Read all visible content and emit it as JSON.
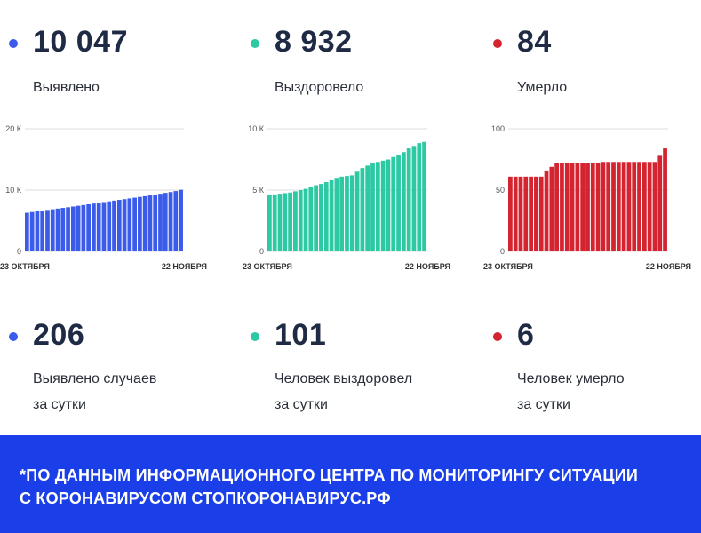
{
  "colors": {
    "blue": "#3b5bea",
    "teal": "#2cc9a3",
    "red": "#d42430",
    "footer": "#1a3ee8"
  },
  "stats": [
    {
      "value": "10 047",
      "label": "Выявлено"
    },
    {
      "value": "8 932",
      "label": "Выздоровело"
    },
    {
      "value": "84",
      "label": "Умерло"
    }
  ],
  "daily": [
    {
      "value": "206",
      "label_line1": "Выявлено случаев",
      "label_line2": "за сутки"
    },
    {
      "value": "101",
      "label_line1": "Человек выздоровел",
      "label_line2": "за сутки"
    },
    {
      "value": "6",
      "label_line1": "Человек умерло",
      "label_line2": "за сутки"
    }
  ],
  "chart_data": [
    {
      "type": "bar",
      "x_start_label": "23 ОКТЯБРЯ",
      "x_end_label": "22 НОЯБРЯ",
      "y_tick_labels": [
        "0",
        "10 К",
        "20 К"
      ],
      "y_ticks": [
        0,
        10000,
        20000
      ],
      "ylim": [
        0,
        20000
      ],
      "color": "#3b5bea",
      "values": [
        6300,
        6420,
        6540,
        6650,
        6760,
        6870,
        6980,
        7090,
        7200,
        7320,
        7440,
        7560,
        7680,
        7800,
        7920,
        8040,
        8160,
        8280,
        8400,
        8520,
        8640,
        8760,
        8880,
        9000,
        9120,
        9260,
        9400,
        9540,
        9680,
        9841,
        10047
      ]
    },
    {
      "type": "bar",
      "x_start_label": "23 ОКТЯБРЯ",
      "x_end_label": "22 НОЯБРЯ",
      "y_tick_labels": [
        "0",
        "5 К",
        "10 К"
      ],
      "y_ticks": [
        0,
        5000,
        10000
      ],
      "ylim": [
        0,
        10000
      ],
      "color": "#2cc9a3",
      "values": [
        4600,
        4650,
        4700,
        4750,
        4800,
        4900,
        5000,
        5100,
        5250,
        5400,
        5500,
        5650,
        5800,
        6000,
        6100,
        6150,
        6200,
        6500,
        6800,
        7000,
        7200,
        7300,
        7400,
        7500,
        7700,
        7900,
        8100,
        8400,
        8600,
        8831,
        8932
      ]
    },
    {
      "type": "bar",
      "x_start_label": "23 ОКТЯБРЯ",
      "x_end_label": "22 НОЯБРЯ",
      "y_tick_labels": [
        "0",
        "50",
        "100"
      ],
      "y_ticks": [
        0,
        50,
        100
      ],
      "ylim": [
        0,
        100
      ],
      "color": "#d42430",
      "values": [
        61,
        61,
        61,
        61,
        61,
        61,
        61,
        66,
        69,
        72,
        72,
        72,
        72,
        72,
        72,
        72,
        72,
        72,
        73,
        73,
        73,
        73,
        73,
        73,
        73,
        73,
        73,
        73,
        73,
        78,
        84
      ]
    }
  ],
  "footer": {
    "line1": "*ПО ДАННЫМ ИНФОРМАЦИОННОГО ЦЕНТРА ПО МОНИТОРИНГУ СИТУАЦИИ",
    "line2_prefix": "С КОРОНАВИРУСОМ ",
    "line2_link": "СТОПКОРОНАВИРУС.РФ"
  }
}
